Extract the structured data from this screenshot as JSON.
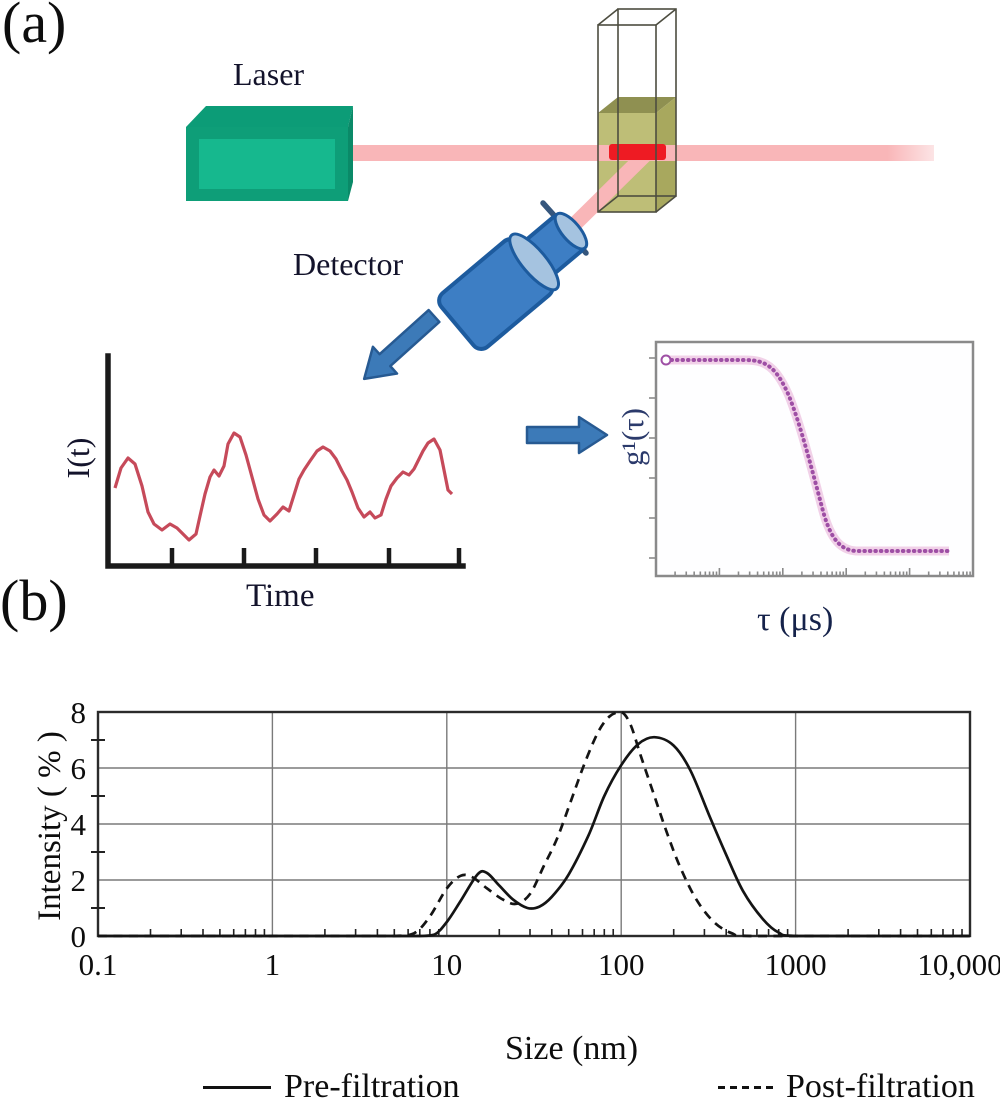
{
  "panel_a": {
    "label": "(a)",
    "laser_label": "Laser",
    "detector_label": "Detector",
    "intensity_plot": {
      "ylabel": "I(t)",
      "xlabel": "Time"
    },
    "correlation_plot": {
      "ylabel": "g¹(τ)",
      "xlabel": "τ  (μs)"
    }
  },
  "panel_b": {
    "label": "(b)"
  },
  "chart_data": {
    "type": "line",
    "xscale": "log",
    "xlabel": "Size  (nm)",
    "ylabel": "Intensity ( % )",
    "xlim": [
      0.1,
      10000
    ],
    "ylim": [
      0,
      8
    ],
    "x_ticks": [
      "0.1",
      "1",
      "10",
      "100",
      "1000",
      "10,000"
    ],
    "x_tick_values": [
      0.1,
      1,
      10,
      100,
      1000,
      10000
    ],
    "y_ticks": [
      0,
      2,
      4,
      6,
      8
    ],
    "y_minor_ticks": [
      1,
      3,
      5,
      7
    ],
    "grid": true,
    "legend_position": "bottom",
    "series": [
      {
        "name": "Pre-filtration",
        "style": "solid",
        "points": [
          [
            0.1,
            0
          ],
          [
            1,
            0
          ],
          [
            3,
            0
          ],
          [
            5,
            0
          ],
          [
            7,
            0
          ],
          [
            8.5,
            0.05
          ],
          [
            10,
            0.5
          ],
          [
            12,
            1.25
          ],
          [
            15,
            2.2
          ],
          [
            17,
            2.25
          ],
          [
            20,
            1.8
          ],
          [
            24,
            1.3
          ],
          [
            29,
            1.0
          ],
          [
            34,
            1.05
          ],
          [
            40,
            1.4
          ],
          [
            50,
            2.2
          ],
          [
            65,
            3.6
          ],
          [
            80,
            5.0
          ],
          [
            100,
            6.1
          ],
          [
            125,
            6.85
          ],
          [
            155,
            7.1
          ],
          [
            200,
            6.8
          ],
          [
            250,
            5.9
          ],
          [
            320,
            4.3
          ],
          [
            400,
            2.9
          ],
          [
            500,
            1.6
          ],
          [
            650,
            0.6
          ],
          [
            800,
            0.12
          ],
          [
            1000,
            0
          ],
          [
            3000,
            0
          ],
          [
            10000,
            0
          ]
        ]
      },
      {
        "name": "Post-filtration",
        "style": "dashed",
        "points": [
          [
            0.1,
            0
          ],
          [
            1,
            0
          ],
          [
            3,
            0
          ],
          [
            5,
            0
          ],
          [
            6.5,
            0.1
          ],
          [
            8,
            0.7
          ],
          [
            10,
            1.7
          ],
          [
            12,
            2.15
          ],
          [
            14,
            2.1
          ],
          [
            17,
            1.7
          ],
          [
            21,
            1.3
          ],
          [
            25,
            1.15
          ],
          [
            30,
            1.5
          ],
          [
            36,
            2.5
          ],
          [
            43,
            3.5
          ],
          [
            52,
            4.9
          ],
          [
            62,
            6.2
          ],
          [
            74,
            7.3
          ],
          [
            86,
            7.85
          ],
          [
            100,
            8.0
          ],
          [
            113,
            7.55
          ],
          [
            130,
            6.4
          ],
          [
            155,
            5.0
          ],
          [
            185,
            3.6
          ],
          [
            220,
            2.4
          ],
          [
            270,
            1.3
          ],
          [
            340,
            0.5
          ],
          [
            430,
            0.1
          ],
          [
            550,
            0
          ],
          [
            2000,
            0
          ],
          [
            10000,
            0
          ]
        ]
      }
    ]
  },
  "colors": {
    "laser-front": "#0e9e78",
    "laser-inner": "#16b88e",
    "laser-top": "#0c9c77",
    "laser-side": "#0a8a68",
    "beam": "#f9b6b8",
    "beam-core": "#ee1b23",
    "liquid": "#b9b96b",
    "liquid-top": "#8f9051",
    "liquid-side": "#a8a85e",
    "cuvette-line": "#4d4d40",
    "detector": "#3d7ec4",
    "detector-light": "#a5c3e0",
    "detector-outline": "#1d5b9e",
    "slit": "#35567d",
    "arrow": "#3c7ab8",
    "arrow-outline": "#275a92",
    "wave": "#c64a5a",
    "gcurve": "#9e4fa5",
    "gcurve-halo": "#efc9e4",
    "axis": "#1a1a1a",
    "grid": "#7a7a7a",
    "frame": "#8a8a8a"
  }
}
